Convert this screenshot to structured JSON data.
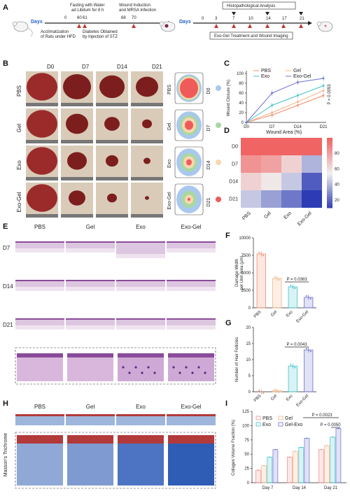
{
  "panels": {
    "A": "A",
    "B": "B",
    "C": "C",
    "D": "D",
    "E": "E",
    "F": "F",
    "G": "G",
    "H": "H",
    "I": "I"
  },
  "timeline1": {
    "days_label": "Days",
    "ticks": [
      "0",
      "60",
      "61",
      "68",
      "70"
    ],
    "top_note_1": "Fasting with Water",
    "top_note_2": "ad Libitum for 8 h",
    "top_note_3": "Wound Induction",
    "top_note_4": "and MRSA Infection",
    "bottom_note_1": "Acclimatization",
    "bottom_note_2": "of Rats under HFD",
    "bottom_note_3": "Diabetes Obtained",
    "bottom_note_4": "by Injection of STZ"
  },
  "timeline2": {
    "days_label": "Days",
    "ticks": [
      "0",
      "3",
      "7",
      "10",
      "14",
      "17",
      "21"
    ],
    "top_box": "Histopathological Analysis",
    "bottom_box": "Exo-Gel Treatment and Wound Imaging"
  },
  "panelB": {
    "days": [
      "D0",
      "D7",
      "D14",
      "D21"
    ],
    "groups": [
      "PBS",
      "Gel",
      "Exo",
      "Exo-Gel"
    ],
    "legend_days": [
      "D0",
      "D7",
      "D14",
      "D21"
    ],
    "legend_colors": [
      "#a9c8ee",
      "#a8d8a0",
      "#f7d7b0",
      "#ef5a5a"
    ]
  },
  "chartC": {
    "ylabel": "Wound Closure (%)",
    "legend": [
      "PBS",
      "Gel",
      "Exo",
      "Exo-Gel"
    ],
    "colors": [
      "#f08a6a",
      "#f4b183",
      "#3fc1c9",
      "#6a6fd1"
    ],
    "pvalue": "P = 0.0053",
    "ticks_y": [
      "0",
      "20",
      "40",
      "60",
      "80",
      "100"
    ]
  },
  "chart_data": [
    {
      "type": "line",
      "title": "",
      "ylabel": "Wound Closure (%)",
      "x": [
        "D0",
        "D7",
        "D14",
        "D21"
      ],
      "ylim": [
        0,
        100
      ],
      "series": [
        {
          "name": "PBS",
          "values": [
            0,
            15,
            35,
            55
          ]
        },
        {
          "name": "Gel",
          "values": [
            0,
            20,
            42,
            65
          ]
        },
        {
          "name": "Exo",
          "values": [
            0,
            35,
            55,
            75
          ]
        },
        {
          "name": "Exo-Gel",
          "values": [
            0,
            60,
            82,
            90
          ]
        }
      ]
    },
    {
      "type": "heatmap",
      "title": "Wound Area (%)",
      "rows": [
        "D0",
        "D7",
        "D14",
        "D21"
      ],
      "cols": [
        "PBS",
        "Gel",
        "Exo",
        "Exo-Gel"
      ],
      "values": [
        [
          100,
          100,
          100,
          100
        ],
        [
          85,
          80,
          65,
          40
        ],
        [
          65,
          58,
          45,
          18
        ],
        [
          45,
          35,
          25,
          10
        ]
      ],
      "scale_ticks": [
        "20",
        "40",
        "60",
        "80"
      ]
    },
    {
      "type": "bar",
      "ylabel": "Damage Width per Unit Area (μm)",
      "categories": [
        "PBS",
        "Gel",
        "Exo",
        "Exo-Gel"
      ],
      "values": [
        7700,
        4200,
        3000,
        1500
      ],
      "ylim": [
        0,
        10000
      ],
      "annotation": "P = 0.0363"
    },
    {
      "type": "bar",
      "ylabel": "Number of Hair Follicles",
      "categories": [
        "PBS",
        "Gel",
        "Exo",
        "Exo-Gel"
      ],
      "values": [
        0,
        0.3,
        8,
        13
      ],
      "ylim": [
        0,
        20
      ],
      "annotation": "P = 0.0043"
    },
    {
      "type": "bar",
      "ylabel": "Collagen Volume Fraction (%)",
      "categories": [
        "Day 7",
        "Day 14",
        "Day 21"
      ],
      "series": [
        {
          "name": "PBS",
          "values": [
            22,
            45,
            58
          ]
        },
        {
          "name": "Gel",
          "values": [
            30,
            55,
            65
          ]
        },
        {
          "name": "Exo",
          "values": [
            45,
            62,
            80
          ]
        },
        {
          "name": "Gel-Exo",
          "values": [
            58,
            78,
            95
          ]
        }
      ],
      "ylim": [
        0,
        125
      ],
      "annotations": [
        "P = 0.0023",
        "P = 0.0050"
      ]
    }
  ],
  "labels": {
    "heat_title": "Wound Area (%)",
    "f_ylabel_1": "Damage Width",
    "f_ylabel_2": "per Unit Area (μm)",
    "f_p": "P = 0.0363",
    "g_ylabel": "Number of Hair Follicles",
    "g_p": "P = 0.0043",
    "i_ylabel": "Collagen Volume Fraction (%)",
    "i_p1": "P = 0.0023",
    "i_p2": "P = 0.0050",
    "i_legend": [
      "PBS",
      "Gel",
      "Exo",
      "Gel-Exo"
    ],
    "i_colors": [
      "#f08a8a",
      "#f4b183",
      "#3fc1c9",
      "#6a6fd1"
    ],
    "e_groups": [
      "PBS",
      "Gel",
      "Exo",
      "Exo-Gel"
    ],
    "e_days": [
      "D7",
      "D14",
      "D21"
    ],
    "h_groups": [
      "PBS",
      "Gel",
      "Exo",
      "Exo-Gel"
    ],
    "h_stain": "Masson's Trichrome"
  }
}
